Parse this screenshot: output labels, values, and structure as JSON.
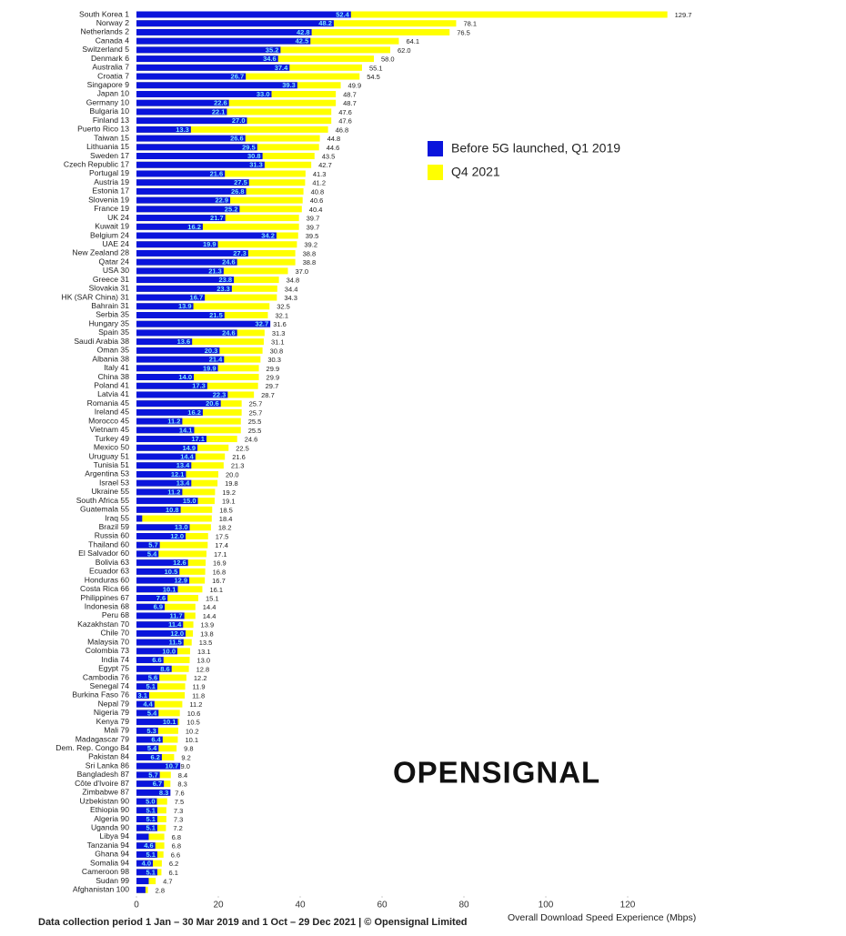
{
  "chart_data": {
    "type": "bar",
    "orientation": "horizontal",
    "overlay": true,
    "x_label": "Overall Download Speed Experience (Mbps)",
    "footer": "Data collection period 1 Jan – 30 Mar 2019 and 1 Oct – 29 Dec 2021 | © Opensignal Limited",
    "logo": "OPENSIGNAL",
    "legend_position": "upper right",
    "xlim": [
      0,
      120
    ],
    "xticks": [
      0,
      20,
      40,
      60,
      80,
      100,
      120
    ],
    "categories": [
      "South Korea 1",
      "Norway 2",
      "Netherlands 2",
      "Canada 4",
      "Switzerland 5",
      "Denmark 6",
      "Australia 7",
      "Croatia 7",
      "Singapore 9",
      "Japan 10",
      "Germany 10",
      "Bulgaria 10",
      "Finland 13",
      "Puerto Rico 13",
      "Taiwan 15",
      "Lithuania 15",
      "Sweden 17",
      "Czech Republic 17",
      "Portugal 19",
      "Austria 19",
      "Estonia 17",
      "Slovenia 19",
      "France 19",
      "UK 24",
      "Kuwait 19",
      "Belgium 24",
      "UAE 24",
      "New Zealand 28",
      "Qatar 24",
      "USA 30",
      "Greece 31",
      "Slovakia 31",
      "HK (SAR China) 31",
      "Bahrain 31",
      "Serbia 35",
      "Hungary 35",
      "Spain 35",
      "Saudi Arabia 38",
      "Oman 35",
      "Albania 38",
      "Italy 41",
      "China 38",
      "Poland 41",
      "Latvia 41",
      "Romania 45",
      "Ireland 45",
      "Morocco 45",
      "Vietnam 45",
      "Turkey 49",
      "Mexico 50",
      "Uruguay 51",
      "Tunisia 51",
      "Argentina 53",
      "Israel 53",
      "Ukraine 55",
      "South Africa 55",
      "Guatemala 55",
      "Iraq 55",
      "Brazil 59",
      "Russia 60",
      "Thailand 60",
      "El Salvador 60",
      "Bolivia 63",
      "Ecuador 63",
      "Honduras 60",
      "Costa Rica 66",
      "Philippines 67",
      "Indonesia 68",
      "Peru 68",
      "Kazakhstan 70",
      "Chile 70",
      "Malaysia 70",
      "Colombia 73",
      "India 74",
      "Egypt 75",
      "Cambodia 76",
      "Senegal 74",
      "Burkina Faso 76",
      "Nepal 79",
      "Nigeria 79",
      "Kenya 79",
      "Mali 79",
      "Madagascar 79",
      "Dem. Rep. Congo 84",
      "Pakistan 84",
      "Sri Lanka 86",
      "Bangladesh 87",
      "Côte d'Ivoire 87",
      "Zimbabwe 87",
      "Uzbekistan 90",
      "Ethiopia 90",
      "Algeria 90",
      "Uganda 90",
      "Libya 94",
      "Tanzania 94",
      "Ghana 94",
      "Somalia 94",
      "Cameroon 98",
      "Sudan 99",
      "Afghanistan 100"
    ],
    "series": [
      {
        "name": "Q4 2021",
        "color": "#ffff00",
        "values": [
          129.7,
          78.1,
          76.5,
          64.1,
          62.0,
          58.0,
          55.1,
          54.5,
          49.9,
          48.7,
          48.7,
          47.6,
          47.6,
          46.8,
          44.8,
          44.6,
          43.5,
          42.7,
          41.3,
          41.2,
          40.8,
          40.6,
          40.4,
          39.7,
          39.7,
          39.5,
          39.2,
          38.8,
          38.8,
          37.0,
          34.8,
          34.4,
          34.3,
          32.5,
          32.1,
          31.6,
          31.3,
          31.1,
          30.8,
          30.3,
          29.9,
          29.9,
          29.7,
          28.7,
          25.7,
          25.7,
          25.5,
          25.5,
          24.6,
          22.5,
          21.6,
          21.3,
          20.0,
          19.8,
          19.2,
          19.1,
          18.5,
          18.4,
          18.2,
          17.5,
          17.4,
          17.1,
          16.9,
          16.8,
          16.7,
          16.1,
          15.1,
          14.4,
          14.4,
          13.9,
          13.8,
          13.5,
          13.1,
          13.0,
          12.8,
          12.2,
          11.9,
          11.8,
          11.2,
          10.6,
          10.5,
          10.2,
          10.1,
          9.8,
          9.2,
          9.0,
          8.4,
          8.3,
          7.6,
          7.5,
          7.3,
          7.3,
          7.2,
          6.8,
          6.8,
          6.6,
          6.2,
          6.1,
          4.7,
          2.8
        ],
        "value_labels": [
          "129.7",
          "78.1",
          "76.5",
          "64.1",
          "62.0",
          "58.0",
          "55.1",
          "54.5",
          "49.9",
          "48.7",
          "48.7",
          "47.6",
          "47.6",
          "46.8",
          "44.8",
          "44.6",
          "43.5",
          "42.7",
          "41.3",
          "41.2",
          "40.8",
          "40.6",
          "40.4",
          "39.7",
          "39.7",
          "39.5",
          "39.2",
          "38.8",
          "38.8",
          "37.0",
          "34.8",
          "34.4",
          "34.3",
          "32.5",
          "32.1",
          "31.6",
          "31.3",
          "31.1",
          "30.8",
          "30.3",
          "29.9",
          "29.9",
          "29.7",
          "28.7",
          "25.7",
          "25.7",
          "25.5",
          "25.5",
          "24.6",
          "22.5",
          "21.6",
          "21.3",
          "20.0",
          "19.8",
          "19.2",
          "19.1",
          "18.5",
          "18.4",
          "18.2",
          "17.5",
          "17.4",
          "17.1",
          "16.9",
          "16.8",
          "16.7",
          "16.1",
          "15.1",
          "14.4",
          "14.4",
          "13.9",
          "13.8",
          "13.5",
          "13.1",
          "13.0",
          "12.8",
          "12.2",
          "11.9",
          "11.8",
          "11.2",
          "10.6",
          "10.5",
          "10.2",
          "10.1",
          "9.8",
          "9.2",
          "9.0",
          "8.4",
          "8.3",
          "7.6",
          "7.5",
          "7.3",
          "7.3",
          "7.2",
          "6.8",
          "6.8",
          "6.6",
          "6.2",
          "6.1",
          "4.7",
          "2.8"
        ]
      },
      {
        "name": "Before 5G launched, Q1 2019",
        "color": "#0a14dc",
        "values": [
          52.4,
          48.2,
          42.8,
          42.5,
          35.2,
          34.6,
          37.4,
          26.7,
          39.3,
          33.0,
          22.6,
          22.1,
          27.0,
          13.3,
          26.6,
          29.5,
          30.8,
          31.3,
          21.6,
          27.5,
          26.8,
          22.9,
          25.2,
          21.7,
          16.2,
          34.2,
          19.9,
          27.3,
          24.6,
          21.3,
          23.8,
          23.3,
          16.7,
          13.9,
          21.5,
          32.7,
          24.6,
          13.6,
          20.3,
          21.4,
          19.9,
          14.0,
          17.3,
          22.3,
          20.6,
          16.2,
          11.2,
          14.1,
          17.1,
          14.9,
          14.4,
          13.4,
          12.1,
          13.4,
          11.2,
          15.0,
          10.8,
          1.4,
          13.0,
          12.0,
          5.7,
          5.4,
          12.6,
          10.5,
          12.9,
          10.1,
          7.6,
          6.9,
          11.7,
          11.4,
          12.0,
          11.5,
          10.0,
          6.6,
          8.6,
          5.6,
          5.1,
          3.1,
          4.4,
          5.4,
          10.1,
          5.3,
          6.4,
          5.4,
          6.2,
          10.7,
          5.7,
          6.7,
          8.3,
          5.0,
          5.1,
          5.1,
          5.1,
          3.0,
          4.6,
          5.1,
          4.0,
          5.1,
          3.0,
          2.2
        ],
        "value_labels": [
          "52.4",
          "48.2",
          "42.8",
          "42.5",
          "35.2",
          "34.6",
          "37.4",
          "26.7",
          "39.3",
          "33.0",
          "22.6",
          "22.1",
          "27.0",
          "13.3",
          "26.6",
          "29.5",
          "30.8",
          "31.3",
          "21.6",
          "27.5",
          "26.8",
          "22.9",
          "25.2",
          "21.7",
          "16.2",
          "34.2",
          "19.9",
          "27.3",
          "24.6",
          "21.3",
          "23.8",
          "23.3",
          "16.7",
          "13.9",
          "21.5",
          "32.7",
          "24.6",
          "13.6",
          "20.3",
          "21.4",
          "19.9",
          "14.0",
          "17.3",
          "22.3",
          "20.6",
          "16.2",
          "11.2",
          "14.1",
          "17.1",
          "14.9",
          "14.4",
          "13.4",
          "12.1",
          "13.4",
          "11.2",
          "15.0",
          "10.8",
          null,
          "13.0",
          "12.0",
          "5.7",
          "5.4",
          "12.6",
          "10.5",
          "12.9",
          "10.1",
          "7.6",
          "6.9",
          "11.7",
          "11.4",
          "12.0",
          "11.5",
          "10.0",
          "6.6",
          "8.6",
          "5.6",
          "5.1",
          "3.1",
          "4.4",
          "5.4",
          "10.1",
          "5.3",
          "6.4",
          "5.4",
          "6.2",
          "10.7",
          "5.7",
          "6.7",
          "8.3",
          "5.0",
          "5.1",
          "5.1",
          "5.1",
          null,
          "4.6",
          "5.1",
          "4.0",
          "5.1",
          null,
          null
        ]
      }
    ]
  }
}
